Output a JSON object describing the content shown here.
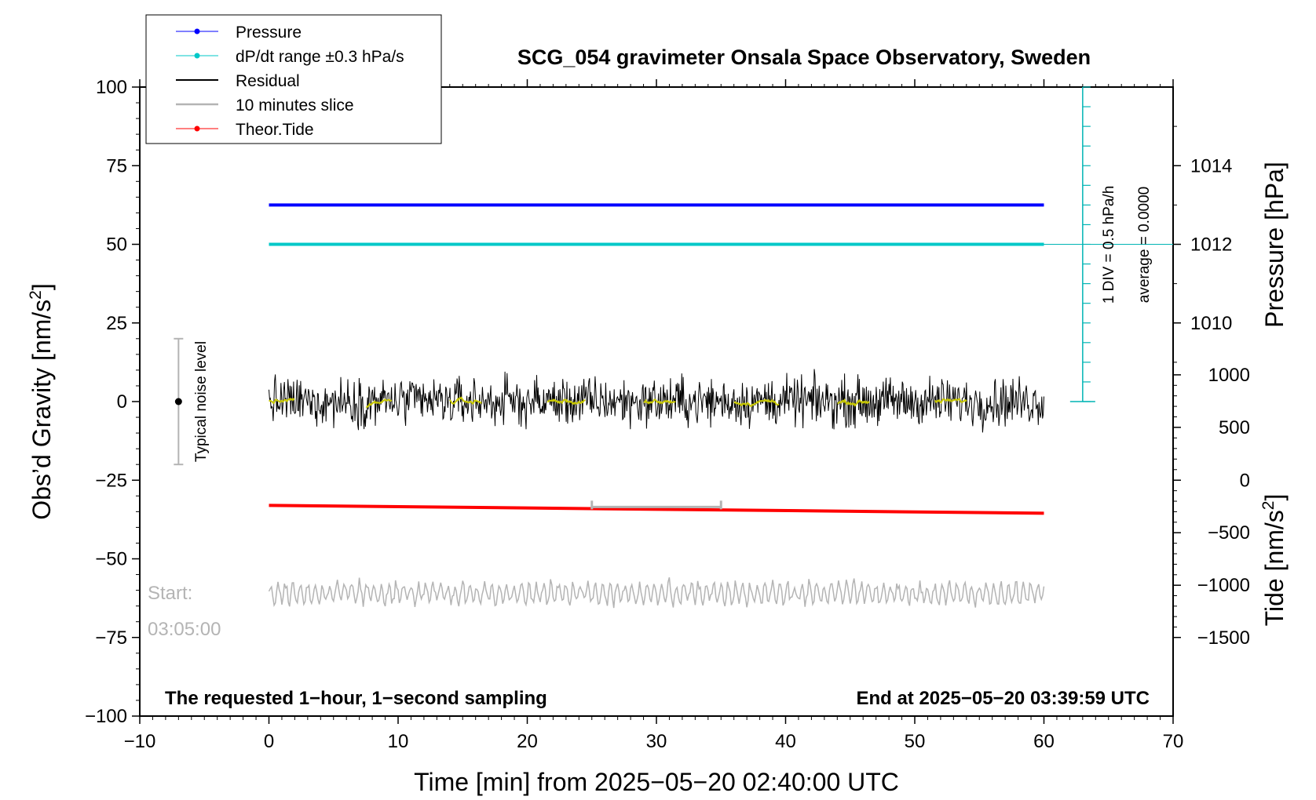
{
  "chart_data": {
    "type": "line",
    "title": "SCG_054 gravimeter Onsala Space Observatory, Sweden",
    "xlabel": "Time [min] from 2025−05−20 02:40:00 UTC",
    "ylabel_left_main": "Obs’d Gravity [nm/s",
    "ylabel_left_sup": "2",
    "ylabel_left_end": "]",
    "ylabel_right_pressure": "Pressure [hPa]",
    "ylabel_right_tide_main": "Tide [nm/s",
    "ylabel_right_tide_sup": "2",
    "ylabel_right_tide_end": "]",
    "xlim": [
      -10,
      70
    ],
    "ylim": [
      -100,
      100
    ],
    "x_ticks": [
      -10,
      0,
      10,
      20,
      30,
      40,
      50,
      60,
      70
    ],
    "x_tick_labels": [
      "−10",
      "0",
      "10",
      "20",
      "30",
      "40",
      "50",
      "60",
      "70"
    ],
    "y_ticks": [
      100,
      75,
      50,
      25,
      0,
      -25,
      -50,
      -75,
      -100
    ],
    "y_tick_labels": [
      "100",
      "75",
      "50",
      "25",
      "0",
      "−25",
      "−50",
      "−75",
      "−100"
    ],
    "pressure_axis": {
      "ticks": [
        {
          "value": 1014,
          "label": "1014",
          "y_on_gravity": 75
        },
        {
          "value": 1012,
          "label": "1012",
          "y_on_gravity": 50
        },
        {
          "value": 1010,
          "label": "1010",
          "y_on_gravity": 25
        }
      ]
    },
    "tide_axis": {
      "ticks": [
        {
          "value": 1000,
          "label": "1000",
          "y_on_gravity": 8.5
        },
        {
          "value": 500,
          "label": "500",
          "y_on_gravity": -8.2
        },
        {
          "value": 0,
          "label": "0",
          "y_on_gravity": -25
        },
        {
          "value": -500,
          "label": "−500",
          "y_on_gravity": -41.7
        },
        {
          "value": -1000,
          "label": "−1000",
          "y_on_gravity": -58.4
        },
        {
          "value": -1500,
          "label": "−1500",
          "y_on_gravity": -75
        }
      ]
    },
    "series": [
      {
        "name": "Pressure",
        "color": "#0000ff",
        "x": [
          0,
          60
        ],
        "y": [
          62.5,
          62.5
        ]
      },
      {
        "name": "dP/dt range ±0.3 hPa/s",
        "color": "#00c8c8",
        "x": [
          0,
          60
        ],
        "y": [
          50,
          50
        ]
      },
      {
        "name": "Residual",
        "color": "#000000",
        "x_range": [
          0,
          60
        ],
        "level": 0,
        "noise_amplitude": 5
      },
      {
        "name": "10 minutes slice",
        "color": "#b4b4b4",
        "x_range": [
          0,
          60
        ],
        "level": -61,
        "amplitude": 3.5
      },
      {
        "name": "Theor.Tide",
        "color": "#ff0000",
        "x": [
          0,
          60
        ],
        "y": [
          -33,
          -35.5
        ]
      }
    ],
    "residual_smooth_color": "#c8c800",
    "slice_marker": {
      "x_start": 25,
      "x_end": 35,
      "y": -33.5,
      "color": "#b4b4b4"
    },
    "noise_bar": {
      "x": -7,
      "y_low": -20,
      "y_high": 20,
      "label": "Typical noise level"
    },
    "pressure_scale_bar": {
      "x": 63,
      "y_low": 0,
      "y_high": 100,
      "div_label": "1 DIV = 0.5 hPa/h",
      "avg_label": "average = 0.0000",
      "color": "#00b4b4"
    },
    "start_label_line1": "Start:",
    "start_label_line2": "03:05:00",
    "note_left": "The requested 1−hour, 1−second sampling",
    "note_right": "End at 2025−05−20 03:39:59 UTC",
    "legend_placement": "top-left",
    "grid": false
  }
}
